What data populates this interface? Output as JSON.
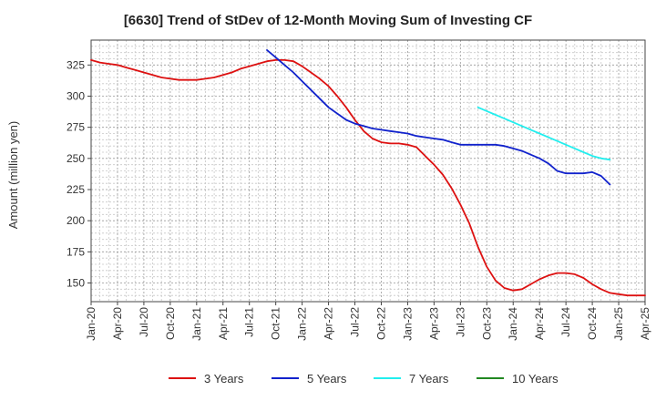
{
  "chart_data": {
    "type": "line",
    "title": "[6630]  Trend of StDev of 12-Month Moving Sum of Investing CF",
    "ylabel": "Amount (million yen)",
    "xlabel": "",
    "ylim": [
      135,
      345
    ],
    "yticks": [
      150,
      175,
      200,
      225,
      250,
      275,
      300,
      325
    ],
    "xticks": [
      "Jan-20",
      "Apr-20",
      "Jul-20",
      "Oct-20",
      "Jan-21",
      "Apr-21",
      "Jul-21",
      "Oct-21",
      "Jan-22",
      "Apr-22",
      "Jul-22",
      "Oct-22",
      "Jan-23",
      "Apr-23",
      "Jul-23",
      "Oct-23",
      "Jan-24",
      "Apr-24",
      "Jul-24",
      "Oct-24",
      "Jan-25",
      "Apr-25"
    ],
    "grid": true,
    "legend_position": "bottom",
    "x_start": "Jan-20",
    "series": [
      {
        "name": "3 Years",
        "color": "#dd1111",
        "start": "Jan-20",
        "values": [
          329,
          327,
          326,
          325,
          323,
          321,
          319,
          317,
          315,
          314,
          313,
          313,
          313,
          314,
          315,
          317,
          319,
          322,
          324,
          326,
          328,
          329,
          329,
          328,
          324,
          319,
          314,
          308,
          300,
          291,
          281,
          272,
          266,
          263,
          262,
          262,
          261,
          259,
          252,
          245,
          237,
          226,
          213,
          198,
          179,
          163,
          152,
          146,
          144,
          145,
          149,
          153,
          156,
          158,
          158,
          157,
          154,
          149,
          145,
          142,
          141,
          140,
          140,
          140
        ]
      },
      {
        "name": "5 Years",
        "color": "#1122cc",
        "start": "Sep-21",
        "values": [
          337,
          331,
          325,
          319,
          312,
          305,
          298,
          291,
          286,
          281,
          278,
          276,
          274,
          273,
          272,
          271,
          270,
          268,
          267,
          266,
          265,
          263,
          261,
          261,
          261,
          261,
          261,
          260,
          258,
          256,
          253,
          250,
          246,
          240,
          238,
          238,
          238,
          239,
          236,
          229
        ]
      },
      {
        "name": "7 Years",
        "color": "#22eeee",
        "start": "Sep-23",
        "values": [
          291,
          288,
          285,
          282,
          279,
          276,
          273,
          270,
          267,
          264,
          261,
          258,
          255,
          252,
          250,
          249
        ]
      },
      {
        "name": "10 Years",
        "color": "#228822",
        "start": "",
        "values": []
      }
    ]
  }
}
